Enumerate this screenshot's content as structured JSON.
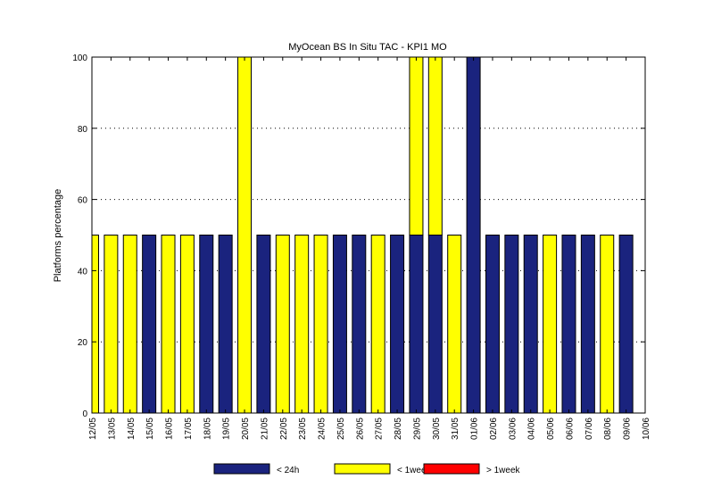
{
  "chart_data": {
    "type": "bar",
    "title": "MyOcean  BS In Situ TAC - KPI1  MO",
    "ylabel": "Platforms percentage",
    "xlabel": "",
    "ylim": [
      0,
      100
    ],
    "yticks": [
      0,
      20,
      40,
      60,
      80,
      100
    ],
    "grid": "horizontal dotted",
    "legend_placement": "bottom",
    "categories": [
      "12/05",
      "13/05",
      "14/05",
      "15/05",
      "16/05",
      "17/05",
      "18/05",
      "19/05",
      "20/05",
      "21/05",
      "22/05",
      "23/05",
      "24/05",
      "25/05",
      "26/05",
      "27/05",
      "28/05",
      "29/05",
      "30/05",
      "31/05",
      "01/06",
      "02/06",
      "03/06",
      "04/06",
      "05/06",
      "06/06",
      "07/06",
      "08/06",
      "09/06",
      "10/06"
    ],
    "series": [
      {
        "name": "< 24h",
        "color": "#1a237e",
        "values": [
          0,
          0,
          0,
          50,
          0,
          0,
          50,
          50,
          0,
          50,
          0,
          0,
          0,
          50,
          50,
          0,
          50,
          50,
          50,
          0,
          100,
          50,
          50,
          50,
          0,
          50,
          50,
          0,
          50,
          0
        ]
      },
      {
        "name": "< 1week",
        "color": "#ffff00",
        "values": [
          50,
          50,
          50,
          0,
          50,
          50,
          0,
          0,
          100,
          0,
          50,
          50,
          50,
          0,
          0,
          50,
          0,
          50,
          50,
          50,
          0,
          0,
          0,
          0,
          50,
          0,
          0,
          50,
          0,
          0
        ]
      },
      {
        "name": "> 1week",
        "color": "#ff0000",
        "values": [
          0,
          0,
          0,
          0,
          0,
          0,
          0,
          0,
          0,
          0,
          0,
          0,
          0,
          0,
          0,
          0,
          0,
          0,
          0,
          0,
          0,
          0,
          0,
          0,
          0,
          0,
          0,
          0,
          0,
          0
        ]
      }
    ]
  }
}
